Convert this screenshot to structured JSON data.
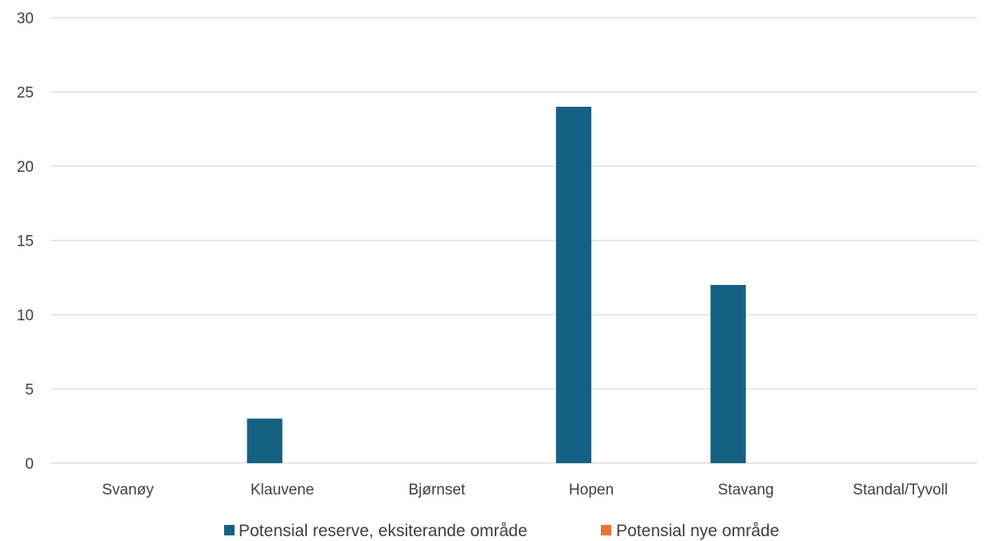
{
  "chart_data": {
    "type": "bar",
    "categories": [
      "Svanøy",
      "Klauvene",
      "Bjørnset",
      "Hopen",
      "Stavang",
      "Standal/Tyvoll"
    ],
    "series": [
      {
        "name": "Potensial reserve, eksiterande område",
        "color": "#156082",
        "values": [
          0,
          3,
          0,
          24,
          12,
          0
        ]
      },
      {
        "name": "Potensial nye område",
        "color": "#E97132",
        "values": [
          0,
          0,
          0,
          0,
          0,
          0
        ]
      }
    ],
    "yticks": [
      "0",
      "5",
      "10",
      "15",
      "20",
      "25",
      "30"
    ],
    "ylim": [
      0,
      30
    ],
    "grid": true,
    "legend_position": "bottom"
  }
}
